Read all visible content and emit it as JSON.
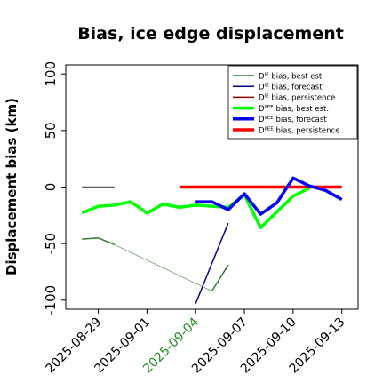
{
  "chart_data": {
    "type": "line",
    "title": "Bias, ice edge displacement",
    "ylabel": "Displacement bias (km)",
    "xlabel": "",
    "ylim": [
      -108,
      108
    ],
    "yticks": [
      100,
      50,
      0,
      -50,
      -100
    ],
    "grid": false,
    "legend_position": "top-right",
    "xticks": [
      {
        "label": "2025-08-29",
        "color": "#000000"
      },
      {
        "label": "2025-09-01",
        "color": "#000000"
      },
      {
        "label": "2025-09-04",
        "color": "#228b22"
      },
      {
        "label": "2025-09-07",
        "color": "#000000"
      },
      {
        "label": "2025-09-10",
        "color": "#000000"
      },
      {
        "label": "2025-09-13",
        "color": "#000000"
      }
    ],
    "legend": [
      {
        "sup": "IE",
        "text": " bias, best est.",
        "color": "#2e7d32",
        "width": 1.5
      },
      {
        "sup": "IE",
        "text": " bias, forecast",
        "color": "#00008b",
        "width": 1.5
      },
      {
        "sup": "IE",
        "text": " bias, persistence",
        "color": "#8b0000",
        "width": 1.5
      },
      {
        "sup": "IIEE",
        "text": " bias, best est.",
        "color": "#00ff00",
        "width": 3.5
      },
      {
        "sup": "IIEE",
        "text": " bias, forecast",
        "color": "#0000ff",
        "width": 3.5
      },
      {
        "sup": "IIEE",
        "text": " bias, persistence",
        "color": "#ff0000",
        "width": 3.5
      }
    ],
    "legend_prefix": "D",
    "series": [
      {
        "id": "iiee-persistence",
        "color": "#ff0000",
        "width": 3.5,
        "x": [
          "2025-09-03",
          "2025-09-04",
          "2025-09-05",
          "2025-09-06",
          "2025-09-07",
          "2025-09-08",
          "2025-09-09",
          "2025-09-10",
          "2025-09-11",
          "2025-09-12",
          "2025-09-13"
        ],
        "y": [
          0,
          0,
          0,
          0,
          0,
          0,
          0,
          0,
          0,
          0,
          0
        ]
      },
      {
        "id": "iiee-best",
        "color": "#00ff00",
        "width": 3.5,
        "x": [
          "2025-08-28",
          "2025-08-29",
          "2025-08-30",
          "2025-08-31",
          "2025-09-01",
          "2025-09-02",
          "2025-09-03",
          "2025-09-04",
          "2025-09-05",
          "2025-09-06",
          "2025-09-07",
          "2025-09-08",
          "2025-09-09",
          "2025-09-10",
          "2025-09-11"
        ],
        "y": [
          -23,
          -17,
          -16,
          -13,
          -23,
          -15,
          -18,
          -16,
          -17,
          -18,
          -7,
          -36,
          -22,
          -8,
          -1
        ]
      },
      {
        "id": "iiee-forecast",
        "color": "#0000ff",
        "width": 3.5,
        "x": [
          "2025-09-04",
          "2025-09-05",
          "2025-09-06",
          "2025-09-07",
          "2025-09-08",
          "2025-09-09",
          "2025-09-10",
          "2025-09-11",
          "2025-09-12",
          "2025-09-13"
        ],
        "y": [
          -13,
          -13,
          -20,
          -6,
          -24,
          -14,
          8,
          1,
          -3,
          -11
        ]
      },
      {
        "id": "ie-persistence",
        "color": "#606060",
        "width": 1.5,
        "x": [
          "2025-08-28",
          "2025-08-30"
        ],
        "y": [
          0,
          0
        ]
      },
      {
        "id": "ie-best",
        "color": "#2e7d32",
        "width": 1.5,
        "x": [
          "2025-08-28",
          "2025-08-29",
          "2025-08-30"
        ],
        "y": [
          -46,
          -45,
          -51
        ]
      },
      {
        "id": "ie-best-link",
        "color": "#2e7d32",
        "width": 0.6,
        "x": [
          "2025-08-30",
          "2025-09-05"
        ],
        "y": [
          -51,
          -92
        ]
      },
      {
        "id": "ie-best-late",
        "color": "#2e7d32",
        "width": 1.5,
        "x": [
          "2025-09-05",
          "2025-09-06"
        ],
        "y": [
          -92,
          -69
        ]
      },
      {
        "id": "ie-forecast",
        "color": "#00008b",
        "width": 1.5,
        "x": [
          "2025-09-04",
          "2025-09-06"
        ],
        "y": [
          -103,
          -32
        ]
      }
    ]
  }
}
